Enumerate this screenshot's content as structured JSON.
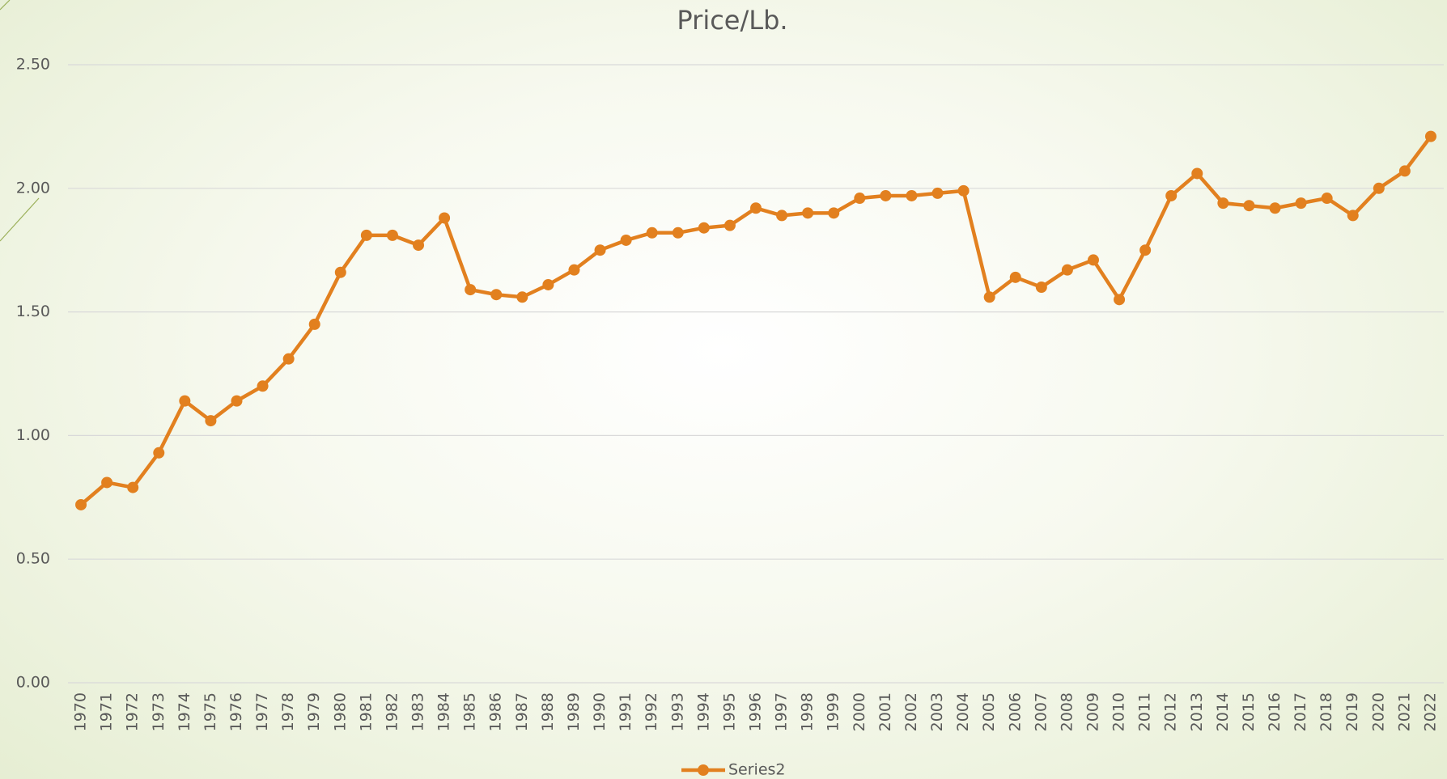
{
  "chart_data": {
    "type": "line",
    "title": "Price/Lb.",
    "categories": [
      "1970",
      "1971",
      "1972",
      "1973",
      "1974",
      "1975",
      "1976",
      "1977",
      "1978",
      "1979",
      "1980",
      "1981",
      "1982",
      "1983",
      "1984",
      "1985",
      "1986",
      "1987",
      "1988",
      "1989",
      "1990",
      "1991",
      "1992",
      "1993",
      "1994",
      "1995",
      "1996",
      "1997",
      "1998",
      "1999",
      "2000",
      "2001",
      "2002",
      "2003",
      "2004",
      "2005",
      "2006",
      "2007",
      "2008",
      "2009",
      "2010",
      "2011",
      "2012",
      "2013",
      "2014",
      "2015",
      "2016",
      "2017",
      "2018",
      "2019",
      "2020",
      "2021",
      "2022"
    ],
    "series": [
      {
        "name": "Series2",
        "color": "#e2801f",
        "values": [
          0.72,
          0.81,
          0.79,
          0.93,
          1.14,
          1.06,
          1.14,
          1.2,
          1.31,
          1.45,
          1.66,
          1.81,
          1.81,
          1.77,
          1.88,
          1.59,
          1.57,
          1.56,
          1.61,
          1.67,
          1.75,
          1.79,
          1.82,
          1.82,
          1.84,
          1.85,
          1.92,
          1.89,
          1.9,
          1.9,
          1.96,
          1.97,
          1.97,
          1.98,
          1.99,
          1.56,
          1.64,
          1.6,
          1.67,
          1.71,
          1.55,
          1.75,
          1.97,
          2.06,
          1.94,
          1.93,
          1.92,
          1.94,
          1.96,
          1.89,
          2.0,
          2.07,
          2.21
        ]
      }
    ],
    "ylim": [
      0,
      2.5
    ],
    "yticks": [
      {
        "value": 0,
        "label": "0.00"
      },
      {
        "value": 0.5,
        "label": "0.50"
      },
      {
        "value": 1,
        "label": "1.00"
      },
      {
        "value": 1.5,
        "label": "1.50"
      },
      {
        "value": 2,
        "label": "2.00"
      },
      {
        "value": 2.5,
        "label": "2.50"
      }
    ],
    "grid": true,
    "legend": "bottom"
  }
}
